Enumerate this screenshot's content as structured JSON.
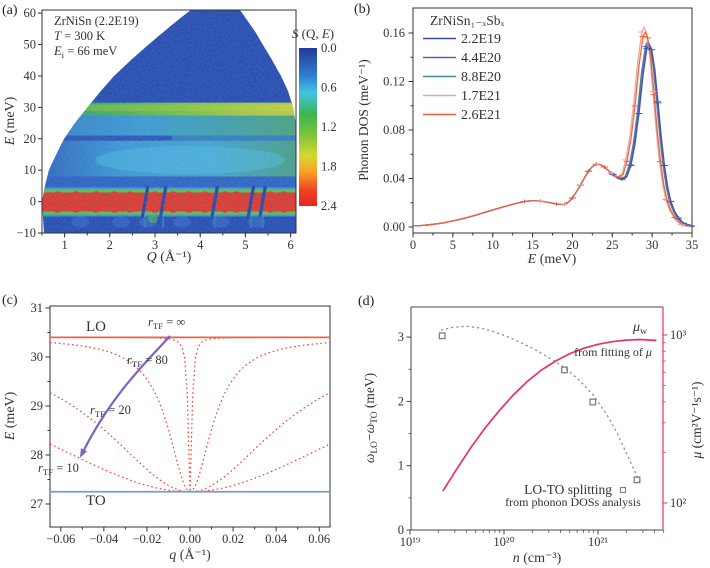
{
  "figure": {
    "panels": {
      "a": {
        "label": "(a)",
        "annotation_lines": [
          [
            [
              "n",
              "ZrNiSn (2.2E19)"
            ]
          ],
          [
            [
              "i",
              "T"
            ],
            [
              "n",
              " = 300 K"
            ]
          ],
          [
            [
              "i",
              "E"
            ],
            [
              "sub",
              "i"
            ],
            [
              "n",
              " = 66 meV"
            ]
          ]
        ],
        "xlabel": [
          [
            "i",
            "Q"
          ],
          [
            "n",
            " (Å⁻¹)"
          ]
        ],
        "ylabel": [
          [
            "i",
            "E"
          ],
          [
            "n",
            " (meV)"
          ]
        ],
        "xtick_labels": [
          "1",
          "2",
          "3",
          "4",
          "5",
          "6"
        ],
        "xtick_values": [
          1,
          2,
          3,
          4,
          5,
          6
        ],
        "ytick_labels": [
          "−10",
          "0",
          "10",
          "20",
          "30",
          "40",
          "50",
          "60"
        ],
        "ytick_values": [
          -10,
          0,
          10,
          20,
          30,
          40,
          50,
          60
        ],
        "colorbar": {
          "title": [
            [
              "i",
              "S"
            ],
            [
              "n",
              " (Q, "
            ],
            [
              "i",
              "E"
            ],
            [
              "n",
              ")"
            ]
          ],
          "tick_labels": [
            "0.0",
            "0.6",
            "1.2",
            "1.8",
            "2.4"
          ],
          "tick_values": [
            0.0,
            0.6,
            1.2,
            1.8,
            2.4
          ]
        }
      },
      "b": {
        "label": "(b)",
        "legend_title": "ZrNiSn₁₋ₓSbₓ",
        "xlabel": [
          [
            "i",
            "E"
          ],
          [
            "n",
            " (meV)"
          ]
        ],
        "ylabel": [
          [
            "n",
            "Phonon DOS (meV⁻¹)"
          ]
        ],
        "xtick_labels": [
          "0",
          "5",
          "10",
          "15",
          "20",
          "25",
          "30",
          "35"
        ],
        "xtick_values": [
          0,
          5,
          10,
          15,
          20,
          25,
          30,
          35
        ],
        "ytick_labels": [
          "0.00",
          "0.04",
          "0.08",
          "0.12",
          "0.16"
        ],
        "ytick_values": [
          0.0,
          0.04,
          0.08,
          0.12,
          0.16
        ]
      },
      "c": {
        "label": "(c)",
        "lo_label": "LO",
        "to_label": "TO",
        "rtf_labels": [
          [
            [
              "i",
              "r"
            ],
            [
              "sub",
              "TF"
            ],
            [
              "n",
              " = ∞"
            ]
          ],
          [
            [
              "i",
              "r"
            ],
            [
              "sub",
              "TF"
            ],
            [
              "n",
              " = 80"
            ]
          ],
          [
            [
              "i",
              "r"
            ],
            [
              "sub",
              "TF"
            ],
            [
              "n",
              " = 20"
            ]
          ],
          [
            [
              "i",
              "r"
            ],
            [
              "sub",
              "TF"
            ],
            [
              "n",
              " = 10"
            ]
          ]
        ],
        "xlabel": [
          [
            "i",
            "q"
          ],
          [
            "n",
            " (Å⁻¹)"
          ]
        ],
        "ylabel": [
          [
            "i",
            "E"
          ],
          [
            "n",
            " (meV)"
          ]
        ],
        "xtick_labels": [
          "−0.06",
          "−0.04",
          "−0.02",
          "0.00",
          "0.02",
          "0.04",
          "0.06"
        ],
        "xtick_values": [
          -0.06,
          -0.04,
          -0.02,
          0,
          0.02,
          0.04,
          0.06
        ],
        "ytick_labels": [
          "27",
          "28",
          "29",
          "30",
          "31"
        ],
        "ytick_values": [
          27,
          28,
          29,
          30,
          31
        ]
      },
      "d": {
        "label": "(d)",
        "xlabel": [
          [
            "i",
            "n"
          ],
          [
            "n",
            " (cm⁻³)"
          ]
        ],
        "ylabel_left": [
          [
            "i",
            "ω"
          ],
          [
            "sub",
            "LO"
          ],
          [
            "n",
            "−"
          ],
          [
            "i",
            "ω"
          ],
          [
            "sub",
            "TO"
          ],
          [
            "n",
            " (meV)"
          ]
        ],
        "ylabel_right": [
          [
            "i",
            "μ"
          ],
          [
            "n",
            " (cm²V⁻¹s⁻¹)"
          ]
        ],
        "mu_label": [
          [
            "i",
            "μ"
          ],
          [
            "sub",
            "w"
          ]
        ],
        "fit_label": [
          [
            "n",
            "from fitting of "
          ],
          [
            "i",
            "μ"
          ]
        ],
        "splitting_label": "LO-TO splitting",
        "dos_analysis_label": "from phonon DOSs analysis",
        "xtick_labels": [
          "10¹⁹",
          "10²⁰",
          "10²¹"
        ],
        "xtick_logn": [
          19,
          20,
          21
        ],
        "ytick_left_labels": [
          "0",
          "1",
          "2",
          "3"
        ],
        "ytick_left_values": [
          0,
          1,
          2,
          3
        ],
        "ytick_right_labels": [
          "10²",
          "10³"
        ],
        "ytick_right_logmu": [
          2,
          3
        ]
      }
    },
    "colors": {
      "pink": "#ed2d6e",
      "lo_line": "#e8644a",
      "dashed_red": "#ee4034",
      "to_line": "#7b9cc4",
      "purple": "#7b62c4",
      "purple_light": "#958bcc",
      "olive": "#b3ac1f",
      "gray_text": "#5a5a5a",
      "gray_dash": "#9c8b7e",
      "square_gray": "#808080",
      "heat_bg": "#2342ac",
      "elastic_red": "#e92c1d"
    }
  },
  "chart_data": [
    {
      "type": "heatmap",
      "panel": "a",
      "title": "S(Q,E) of ZrNiSn (2.2E19) at T = 300 K, Ei = 66 meV",
      "xlabel": "Q (Å⁻¹)",
      "xrange": [
        0.5,
        6.1
      ],
      "ylabel": "E (meV)",
      "yrange": [
        -10,
        61
      ],
      "colorbar_label": "S (Q, E)",
      "colorbar_range": [
        0.0,
        2.4
      ],
      "colormap": "jet (blue=0 to red=2.4)",
      "features": {
        "elastic_line_E": 0,
        "optic_band_E_range": [
          27.5,
          31.5
        ],
        "mid_band_E_range": [
          21,
          27.3
        ],
        "acoustic_band_E_range": [
          8,
          19
        ],
        "bragg_notch_Q": [
          2.78,
          3.18,
          4.32,
          5.12,
          5.38
        ],
        "kinematic_boundary": "white inaccessible wedges at top-left and top-right"
      }
    },
    {
      "type": "line",
      "panel": "b",
      "xlabel": "E (meV)",
      "ylabel": "Phonon DOS (meV⁻¹)",
      "xlim": [
        0,
        35
      ],
      "ylim": [
        0,
        0.18
      ],
      "x": [
        0,
        1,
        2,
        3,
        4,
        5,
        6,
        7,
        8,
        9,
        10,
        11,
        12,
        13,
        14,
        15,
        16,
        17,
        18,
        18.5,
        19,
        19.5,
        20,
        20.5,
        21,
        21.5,
        22,
        22.5,
        23,
        23.5,
        24,
        24.5,
        25,
        25.5,
        26,
        26.5,
        27,
        27.5,
        28,
        28.5,
        29,
        29.3,
        29.6,
        30,
        30.4,
        30.8,
        31.2,
        31.6,
        32,
        32.5,
        33,
        33.5,
        34,
        35
      ],
      "base_values": [
        0.001,
        0.0012,
        0.0018,
        0.0026,
        0.0036,
        0.005,
        0.0065,
        0.0082,
        0.01,
        0.012,
        0.014,
        0.016,
        0.0178,
        0.0196,
        0.021,
        0.0218,
        0.0214,
        0.0203,
        0.019,
        0.0186,
        0.019,
        0.0205,
        0.024,
        0.029,
        0.0345,
        0.0405,
        0.046,
        0.0498,
        0.0518,
        0.0515,
        0.0495,
        0.0465,
        0.0435,
        0.0408,
        0.04,
        0.042,
        0.052,
        0.07,
        0.096,
        0.128,
        0.151,
        0.1545,
        0.15,
        0.133,
        0.105,
        0.076,
        0.052,
        0.034,
        0.0215,
        0.013,
        0.0075,
        0.004,
        0.002,
        0.0005
      ],
      "series": [
        {
          "name": "2.2E19",
          "color": "#3f4fa8",
          "peak_shift_meV": 0.35,
          "peak_scale": 0.975
        },
        {
          "name": "4.4E20",
          "color": "#5a64c0",
          "peak_shift_meV": 0.25,
          "peak_scale": 0.985
        },
        {
          "name": "8.8E20",
          "color": "#4a8a8e",
          "peak_shift_meV": 0.15,
          "peak_scale": 0.99
        },
        {
          "name": "1.7E21",
          "color": "#f2a190",
          "peak_shift_meV": -0.3,
          "peak_scale": 1.065
        },
        {
          "name": "2.6E21",
          "color": "#e9603f",
          "peak_shift_meV": -0.15,
          "peak_scale": 1.04
        }
      ]
    },
    {
      "type": "line",
      "panel": "c",
      "xlabel": "q (Å⁻¹)",
      "ylabel": "E (meV)",
      "xlim": [
        -0.065,
        0.065
      ],
      "ylim": [
        26.5,
        31.05
      ],
      "LO_meV": 30.4,
      "TO_meV": 27.25,
      "screened_rTF": [
        1000,
        80,
        20,
        10
      ],
      "formula": "E(q) = sqrt(TO^2 + (LO^2 - TO^2) * q^2 / (q^2 + rTF^-2))",
      "arrow": {
        "from_rTF": "∞",
        "to_rTF": 10,
        "meaning": "increasing screening lowers LO toward TO"
      }
    },
    {
      "type": "scatter",
      "panel": "d",
      "xlabel": "n (cm⁻³)",
      "xscale": "log",
      "xlim_logn": [
        19,
        21.7
      ],
      "ylabel_left": "ωLO−ωTO (meV)",
      "ylim_left": [
        0,
        3.47
      ],
      "ylabel_right": "μ (cm²V⁻¹s⁻¹)",
      "yscale_right": "log",
      "ylim_right_logmu": [
        1.84,
        3.17
      ],
      "splitting_points_n": [
        2.2e+19,
        4.4e+20,
        8.8e+20,
        2.6e+21
      ],
      "splitting_points_meV": [
        3.02,
        2.49,
        1.99,
        0.78
      ],
      "splitting_guide_logn": [
        19.33,
        19.45,
        19.6,
        19.75,
        19.9,
        20.05,
        20.2,
        20.35,
        20.5,
        20.65,
        20.8,
        20.95,
        21.1,
        21.2,
        21.3,
        21.38,
        21.44
      ],
      "splitting_guide_meV": [
        3.11,
        3.15,
        3.17,
        3.14,
        3.08,
        3.0,
        2.9,
        2.79,
        2.66,
        2.52,
        2.33,
        2.1,
        1.78,
        1.52,
        1.2,
        0.95,
        0.75
      ],
      "mu_curve_logn": [
        19.35,
        19.5,
        19.65,
        19.8,
        19.95,
        20.1,
        20.25,
        20.4,
        20.55,
        20.7,
        20.85,
        21.0,
        21.15,
        21.3,
        21.45,
        21.62
      ],
      "mu_curve_values": [
        118,
        160,
        215,
        280,
        355,
        440,
        530,
        620,
        700,
        775,
        835,
        880,
        912,
        932,
        940,
        928
      ]
    }
  ]
}
